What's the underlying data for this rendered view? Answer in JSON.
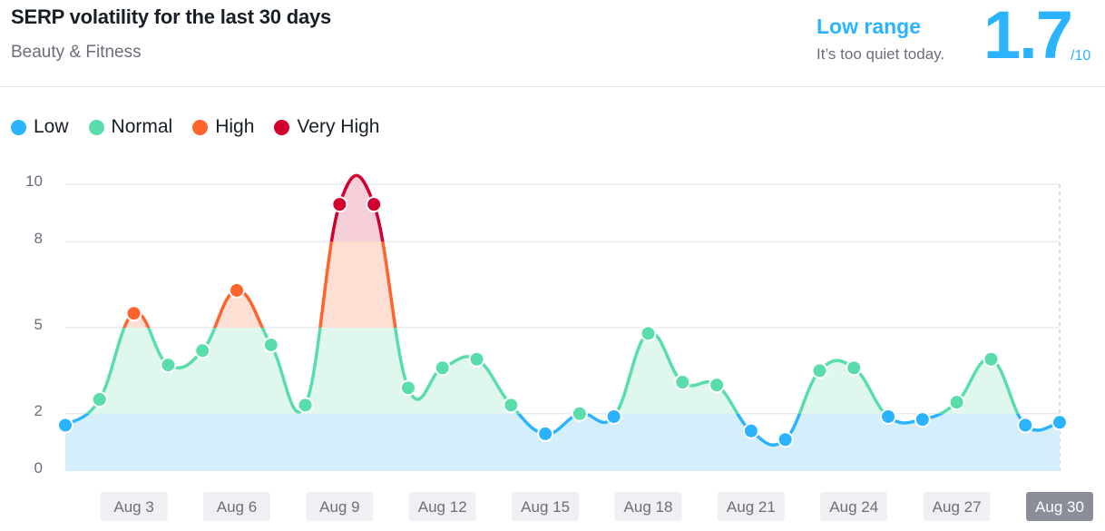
{
  "header": {
    "title": "SERP volatility for the last 30 days",
    "subtitle": "Beauty & Fitness",
    "range_label": "Low range",
    "range_note": "It’s too quiet today.",
    "score": "1.7",
    "score_max": "/10"
  },
  "legend": [
    {
      "label": "Low",
      "color": "#2bb3ff"
    },
    {
      "label": "Normal",
      "color": "#59ddaa"
    },
    {
      "label": "High",
      "color": "#ff642d"
    },
    {
      "label": "Very High",
      "color": "#d1002f"
    }
  ],
  "colors": {
    "low": "#2bb3ff",
    "normal": "#59ddaa",
    "high": "#ff642d",
    "very_high": "#d1002f",
    "low_fill": "#d5eefc",
    "normal_fill": "#dff7ec",
    "high_fill": "#fddfd3",
    "very_high_fill": "#f4cfd8"
  },
  "chart_data": {
    "type": "area",
    "y_ticks": [
      "0",
      "2",
      "5",
      "8",
      "10"
    ],
    "y_tick_values": [
      0,
      2,
      5,
      8,
      10
    ],
    "ylim": [
      0,
      10
    ],
    "band_thresholds": [
      2,
      5,
      8
    ],
    "x_labels": [
      "Aug 3",
      "Aug 6",
      "Aug 9",
      "Aug 12",
      "Aug 15",
      "Aug 18",
      "Aug 21",
      "Aug 24",
      "Aug 27",
      "Aug 30"
    ],
    "x_label_days": [
      3,
      6,
      9,
      12,
      15,
      18,
      21,
      24,
      27,
      30
    ],
    "highlighted_label": "Aug 30",
    "grid": true,
    "legend_position": "top-left",
    "series": [
      {
        "x": [
          1,
          2,
          3,
          4,
          5,
          6,
          7,
          8,
          9,
          10,
          11,
          12,
          13,
          14,
          15,
          16,
          17,
          18,
          19,
          20,
          21,
          22,
          23,
          24,
          25,
          26,
          27,
          28,
          29,
          30
        ],
        "values": [
          1.6,
          2.5,
          5.5,
          3.7,
          4.2,
          6.3,
          4.4,
          2.3,
          9.3,
          9.3,
          2.9,
          3.6,
          3.9,
          2.3,
          1.3,
          2.0,
          1.9,
          4.8,
          3.1,
          3.0,
          1.4,
          1.1,
          3.5,
          3.6,
          1.9,
          1.8,
          2.4,
          3.9,
          1.6,
          1.7
        ]
      }
    ]
  }
}
